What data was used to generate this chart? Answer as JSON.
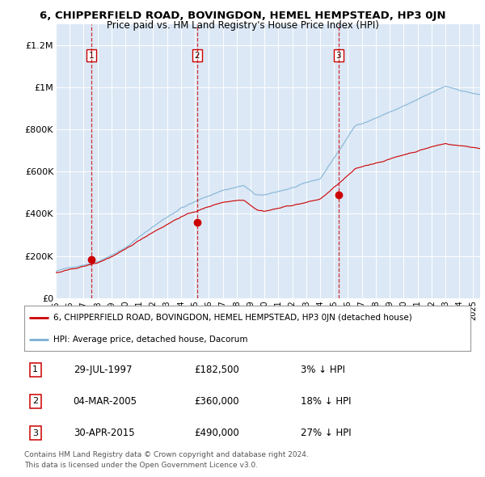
{
  "title": "6, CHIPPERFIELD ROAD, BOVINGDON, HEMEL HEMPSTEAD, HP3 0JN",
  "subtitle": "Price paid vs. HM Land Registry's House Price Index (HPI)",
  "transactions": [
    {
      "date_num": 1997.57,
      "price": 182500,
      "label": "1"
    },
    {
      "date_num": 2005.17,
      "price": 360000,
      "label": "2"
    },
    {
      "date_num": 2015.33,
      "price": 490000,
      "label": "3"
    }
  ],
  "transaction_details": [
    {
      "num": "1",
      "date": "29-JUL-1997",
      "price": "£182,500",
      "pct": "3% ↓ HPI"
    },
    {
      "num": "2",
      "date": "04-MAR-2005",
      "price": "£360,000",
      "pct": "18% ↓ HPI"
    },
    {
      "num": "3",
      "date": "30-APR-2015",
      "price": "£490,000",
      "pct": "27% ↓ HPI"
    }
  ],
  "legend_line1": "6, CHIPPERFIELD ROAD, BOVINGDON, HEMEL HEMPSTEAD, HP3 0JN (detached house)",
  "legend_line2": "HPI: Average price, detached house, Dacorum",
  "footer1": "Contains HM Land Registry data © Crown copyright and database right 2024.",
  "footer2": "This data is licensed under the Open Government Licence v3.0.",
  "ylim": [
    0,
    1300000
  ],
  "yticks": [
    0,
    200000,
    400000,
    600000,
    800000,
    1000000,
    1200000
  ],
  "ytick_labels": [
    "£0",
    "£200K",
    "£400K",
    "£600K",
    "£800K",
    "£1M",
    "£1.2M"
  ],
  "xstart": 1995,
  "xend": 2025.5,
  "price_color": "#cc0000",
  "hpi_color": "#7ab0d4",
  "dot_color": "#cc0000",
  "vline_color": "#cc0000",
  "box_color": "#cc0000",
  "fig_bg": "#ffffff",
  "plot_bg": "#dce8f5"
}
